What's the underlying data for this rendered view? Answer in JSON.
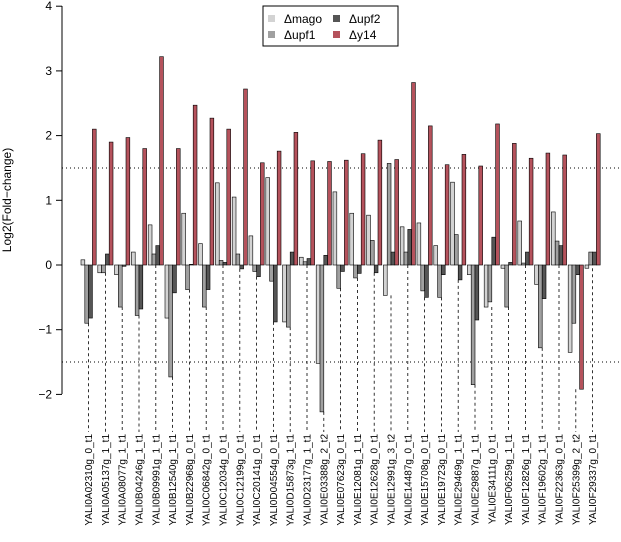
{
  "chart_data": {
    "type": "bar",
    "title": "",
    "xlabel": "",
    "ylabel": "Log2(Fold−change)",
    "ylim": [
      -2.5,
      4
    ],
    "yticks": [
      -2,
      -1,
      0,
      1,
      2,
      3,
      4
    ],
    "ytick_labels": [
      "−2",
      "−1",
      "0",
      "1",
      "2",
      "3",
      "4"
    ],
    "threshold_lines": [
      1.5,
      -1.5
    ],
    "legend_position": "top-center",
    "categories": [
      "YALI0A02310g_0_t1",
      "YALI0A05137g_1_t1",
      "YALI0A08077g_1_t1",
      "YALI0B04246g_1_t1",
      "YALI0B09991g_1_t1",
      "YALI0B12540g_1_t1",
      "YALI0B22968g_0_t1",
      "YALI0C06842g_0_t1",
      "YALI0C12034g_0_t1",
      "YALI0C12199g_0_t1",
      "YALI0C20141g_0_t1",
      "YALI0D04554g_0_t1",
      "YALI0D15873g_1_t1",
      "YALI0D23177g_1_t1",
      "YALI0E03388g_2_t2",
      "YALI0E07623g_0_t1",
      "YALI0E12081g_1_t1",
      "YALI0E12628g_0_t1",
      "YALI0E12991g_3_t2",
      "YALI0E14487g_0_t1",
      "YALI0E15708g_0_t1",
      "YALI0E19723g_0_t1",
      "YALI0E29469g_1_t1",
      "YALI0E29887g_1_t1",
      "YALI0E34111g_0_t1",
      "YALI0F06259g_1_t1",
      "YALI0F12826g_1_t1",
      "YALI0F19602g_1_t1",
      "YALI0F22363g_0_t1",
      "YALI0F25399g_2_t2",
      "YALI0F29337g_0_t1"
    ],
    "series": [
      {
        "name": "Δmago",
        "color": "#d3d3d3",
        "values": [
          0.08,
          -0.12,
          -0.15,
          0.2,
          0.62,
          -0.82,
          0.8,
          0.33,
          1.27,
          1.05,
          0.45,
          1.35,
          -0.88,
          0.12,
          -1.52,
          1.13,
          0.8,
          0.77,
          -0.47,
          0.59,
          0.65,
          0.3,
          1.28,
          -0.15,
          -0.65,
          -0.05,
          0.68,
          -0.3,
          0.82,
          -1.35,
          -0.05
        ]
      },
      {
        "name": "Δupf1",
        "color": "#a0a0a0",
        "values": [
          -0.9,
          -0.12,
          -0.65,
          -0.78,
          0.17,
          -1.73,
          -0.38,
          -0.65,
          0.07,
          0.17,
          -0.1,
          -0.25,
          -0.96,
          0.05,
          -2.27,
          -0.36,
          -0.2,
          0.38,
          1.57,
          0.2,
          -0.4,
          -0.5,
          0.47,
          -1.85,
          -0.57,
          -0.65,
          0.03,
          -1.28,
          0.37,
          -0.9,
          0.2
        ]
      },
      {
        "name": "Δupf2",
        "color": "#555555",
        "values": [
          -0.82,
          0.17,
          -0.02,
          -0.68,
          0.3,
          -0.43,
          0.01,
          -0.38,
          0.04,
          -0.06,
          -0.18,
          -0.88,
          0.2,
          0.1,
          0.15,
          -0.1,
          -0.13,
          -0.12,
          0.2,
          0.55,
          -0.5,
          -0.15,
          -0.23,
          -0.85,
          0.43,
          0.04,
          0.2,
          -0.52,
          0.3,
          -0.15,
          0.2
        ]
      },
      {
        "name": "Δy14",
        "color": "#b5525c",
        "values": [
          2.1,
          1.9,
          1.97,
          1.8,
          3.22,
          1.8,
          2.47,
          2.27,
          2.1,
          2.72,
          1.58,
          1.76,
          2.05,
          1.61,
          1.6,
          1.62,
          1.72,
          1.93,
          1.63,
          2.82,
          2.15,
          1.55,
          1.71,
          1.53,
          2.18,
          1.88,
          1.65,
          1.73,
          1.7,
          -1.92,
          2.03
        ]
      }
    ]
  }
}
